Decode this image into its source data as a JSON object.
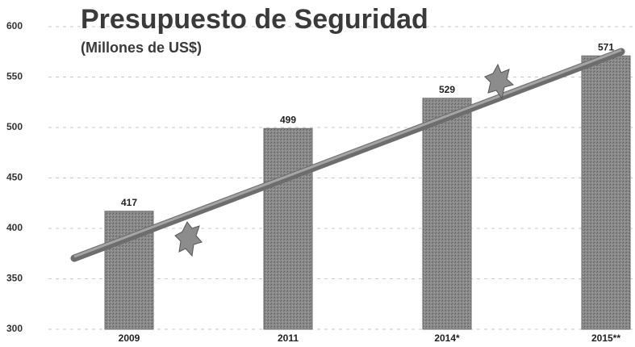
{
  "chart_data": {
    "type": "bar",
    "title": "Presupuesto de Seguridad",
    "subtitle": "(Millones de US$)",
    "categories": [
      "2009",
      "2011",
      "2014*",
      "2015**"
    ],
    "values": [
      417,
      499,
      529,
      571
    ],
    "color": "#8a8a8a",
    "ylim": [
      300,
      600
    ],
    "yticks": [
      300,
      350,
      400,
      450,
      500,
      550,
      600
    ],
    "grid": true
  }
}
